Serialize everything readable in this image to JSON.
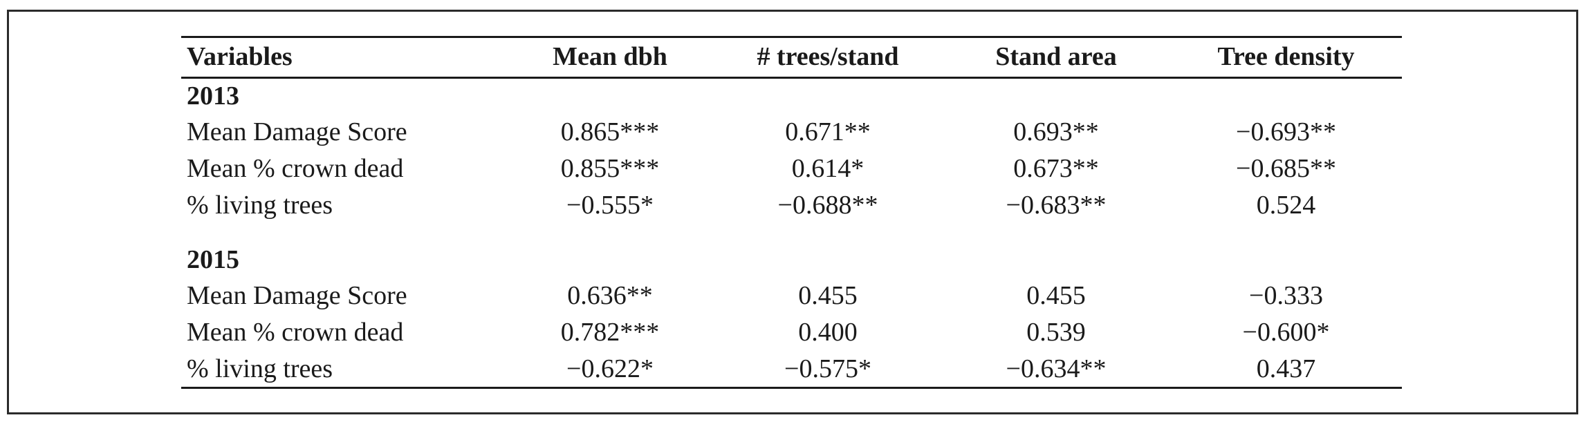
{
  "table": {
    "headers": [
      "Variables",
      "Mean dbh",
      "# trees/stand",
      "Stand area",
      "Tree density"
    ],
    "groups": [
      {
        "year": "2013",
        "rows": [
          {
            "variable": "Mean Damage Score",
            "values": [
              "0.865***",
              "0.671**",
              "0.693**",
              "−0.693**"
            ]
          },
          {
            "variable": "Mean % crown dead",
            "values": [
              "0.855***",
              "0.614*",
              "0.673**",
              "−0.685**"
            ]
          },
          {
            "variable": "% living trees",
            "values": [
              "−0.555*",
              "−0.688**",
              "−0.683**",
              "0.524"
            ]
          }
        ]
      },
      {
        "year": "2015",
        "rows": [
          {
            "variable": "Mean Damage Score",
            "values": [
              "0.636**",
              "0.455",
              "0.455",
              "−0.333"
            ]
          },
          {
            "variable": "Mean % crown dead",
            "values": [
              "0.782***",
              "0.400",
              "0.539",
              "−0.600*"
            ]
          },
          {
            "variable": "% living trees",
            "values": [
              "−0.622*",
              "−0.575*",
              "−0.634**",
              "0.437"
            ]
          }
        ]
      }
    ]
  }
}
